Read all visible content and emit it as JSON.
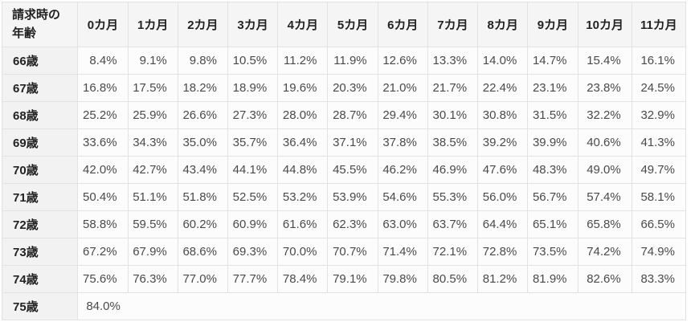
{
  "chart_data": {
    "type": "table",
    "title": "",
    "corner_header": "請求時の\n年齢",
    "corner_header_flat": "請求時の年齢",
    "columns": [
      "0カ月",
      "1カ月",
      "2カ月",
      "3カ月",
      "4カ月",
      "5カ月",
      "6カ月",
      "7カ月",
      "8カ月",
      "9カ月",
      "10カ月",
      "11カ月"
    ],
    "rows": [
      {
        "label": "66歳",
        "values": [
          "8.4%",
          "9.1%",
          "9.8%",
          "10.5%",
          "11.2%",
          "11.9%",
          "12.6%",
          "13.3%",
          "14.0%",
          "14.7%",
          "15.4%",
          "16.1%"
        ]
      },
      {
        "label": "67歳",
        "values": [
          "16.8%",
          "17.5%",
          "18.2%",
          "18.9%",
          "19.6%",
          "20.3%",
          "21.0%",
          "21.7%",
          "22.4%",
          "23.1%",
          "23.8%",
          "24.5%"
        ]
      },
      {
        "label": "68歳",
        "values": [
          "25.2%",
          "25.9%",
          "26.6%",
          "27.3%",
          "28.0%",
          "28.7%",
          "29.4%",
          "30.1%",
          "30.8%",
          "31.5%",
          "32.2%",
          "32.9%"
        ]
      },
      {
        "label": "69歳",
        "values": [
          "33.6%",
          "34.3%",
          "35.0%",
          "35.7%",
          "36.4%",
          "37.1%",
          "37.8%",
          "38.5%",
          "39.2%",
          "39.9%",
          "40.6%",
          "41.3%"
        ]
      },
      {
        "label": "70歳",
        "values": [
          "42.0%",
          "42.7%",
          "43.4%",
          "44.1%",
          "44.8%",
          "45.5%",
          "46.2%",
          "46.9%",
          "47.6%",
          "48.3%",
          "49.0%",
          "49.7%"
        ]
      },
      {
        "label": "71歳",
        "values": [
          "50.4%",
          "51.1%",
          "51.8%",
          "52.5%",
          "53.2%",
          "53.9%",
          "54.6%",
          "55.3%",
          "56.0%",
          "56.7%",
          "57.4%",
          "58.1%"
        ]
      },
      {
        "label": "72歳",
        "values": [
          "58.8%",
          "59.5%",
          "60.2%",
          "60.9%",
          "61.6%",
          "62.3%",
          "63.0%",
          "63.7%",
          "64.4%",
          "65.1%",
          "65.8%",
          "66.5%"
        ]
      },
      {
        "label": "73歳",
        "values": [
          "67.2%",
          "67.9%",
          "68.6%",
          "69.3%",
          "70.0%",
          "70.7%",
          "71.4%",
          "72.1%",
          "72.8%",
          "73.5%",
          "74.2%",
          "74.9%"
        ]
      },
      {
        "label": "74歳",
        "values": [
          "75.6%",
          "76.3%",
          "77.0%",
          "77.7%",
          "78.4%",
          "79.1%",
          "79.8%",
          "80.5%",
          "81.2%",
          "81.9%",
          "82.6%",
          "83.3%"
        ]
      },
      {
        "label": "75歳",
        "values": [
          "84.0%"
        ]
      }
    ],
    "unit": "%",
    "increment_per_month_pct": 0.7,
    "value_range": [
      8.4,
      84.0
    ],
    "layout": {
      "grid": true,
      "data_align": "right",
      "header_align": "center",
      "row_label_align": "left"
    }
  },
  "colors": {
    "header_bg": "#f5f5f5",
    "row_header_bg": "#f2f2f2",
    "cell_bg": "#fcfcfc",
    "border": "#e2e2e2",
    "header_text": "#222222",
    "cell_text": "#4a4a4a",
    "page_bg": "#ffffff"
  }
}
